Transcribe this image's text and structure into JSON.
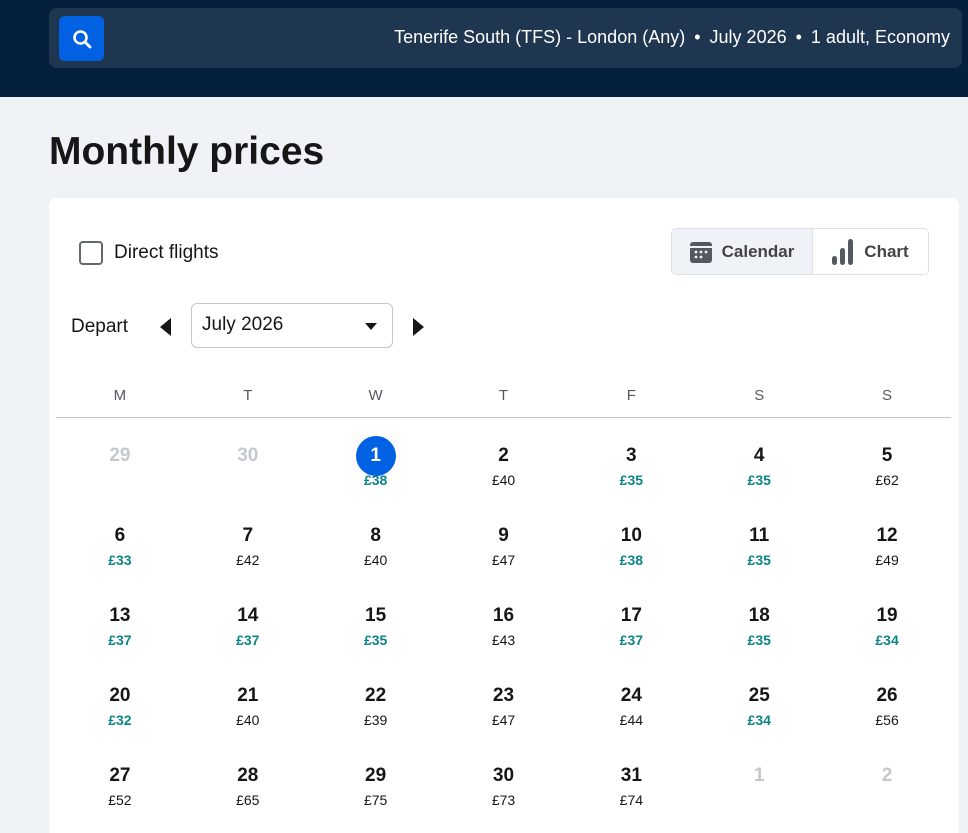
{
  "search": {
    "route": "Tenerife South (TFS) - London (Any)",
    "month": "July 2026",
    "travellers": "1 adult, Economy"
  },
  "page_title": "Monthly prices",
  "filters": {
    "direct_label": "Direct flights",
    "direct_checked": false
  },
  "view_toggle": {
    "calendar": "Calendar",
    "chart": "Chart",
    "active": "Calendar"
  },
  "depart": {
    "label": "Depart",
    "month": "July 2026"
  },
  "colors": {
    "header": "#05203c",
    "accent": "#0062e3",
    "cheap": "#0c838a"
  },
  "weekdays": [
    "M",
    "T",
    "W",
    "T",
    "F",
    "S",
    "S"
  ],
  "days": [
    {
      "d": "29",
      "muted": true
    },
    {
      "d": "30",
      "muted": true
    },
    {
      "d": "1",
      "p": "£38",
      "cheap": true,
      "selected": true
    },
    {
      "d": "2",
      "p": "£40"
    },
    {
      "d": "3",
      "p": "£35",
      "cheap": true
    },
    {
      "d": "4",
      "p": "£35",
      "cheap": true
    },
    {
      "d": "5",
      "p": "£62"
    },
    {
      "d": "6",
      "p": "£33",
      "cheap": true
    },
    {
      "d": "7",
      "p": "£42"
    },
    {
      "d": "8",
      "p": "£40"
    },
    {
      "d": "9",
      "p": "£47"
    },
    {
      "d": "10",
      "p": "£38",
      "cheap": true
    },
    {
      "d": "11",
      "p": "£35",
      "cheap": true
    },
    {
      "d": "12",
      "p": "£49"
    },
    {
      "d": "13",
      "p": "£37",
      "cheap": true
    },
    {
      "d": "14",
      "p": "£37",
      "cheap": true
    },
    {
      "d": "15",
      "p": "£35",
      "cheap": true
    },
    {
      "d": "16",
      "p": "£43"
    },
    {
      "d": "17",
      "p": "£37",
      "cheap": true
    },
    {
      "d": "18",
      "p": "£35",
      "cheap": true
    },
    {
      "d": "19",
      "p": "£34",
      "cheap": true
    },
    {
      "d": "20",
      "p": "£32",
      "cheap": true
    },
    {
      "d": "21",
      "p": "£40"
    },
    {
      "d": "22",
      "p": "£39"
    },
    {
      "d": "23",
      "p": "£47"
    },
    {
      "d": "24",
      "p": "£44"
    },
    {
      "d": "25",
      "p": "£34",
      "cheap": true
    },
    {
      "d": "26",
      "p": "£56"
    },
    {
      "d": "27",
      "p": "£52"
    },
    {
      "d": "28",
      "p": "£65"
    },
    {
      "d": "29",
      "p": "£75"
    },
    {
      "d": "30",
      "p": "£73"
    },
    {
      "d": "31",
      "p": "£74"
    },
    {
      "d": "1",
      "muted": true
    },
    {
      "d": "2",
      "muted": true
    }
  ]
}
